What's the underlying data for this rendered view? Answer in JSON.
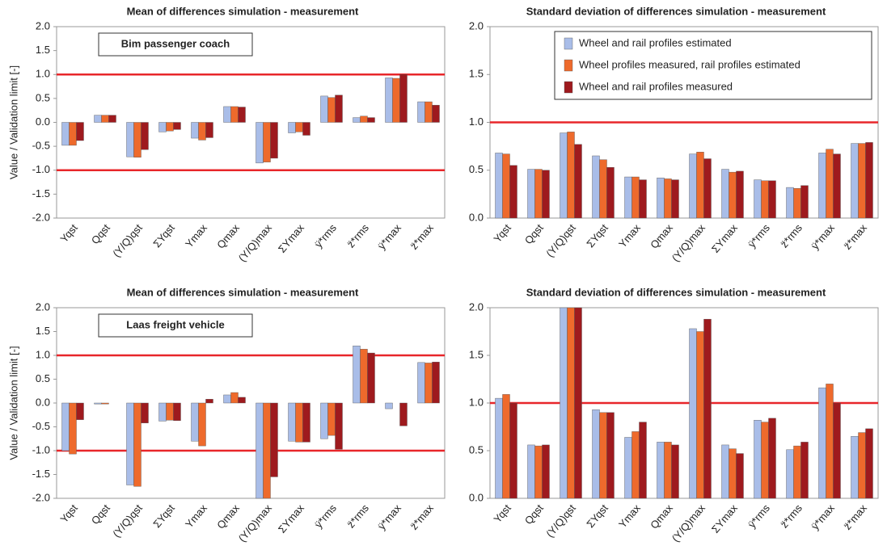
{
  "chart_data": [
    {
      "type": "bar",
      "title": "Mean of differences simulation - measurement",
      "ylabel": "Value / Validation limit [-]",
      "annotation": "Bim passenger coach",
      "categories": [
        "Yqst",
        "Qqst",
        "(Y/Q)qst",
        "ΣYqst",
        "Ymax",
        "Qmax",
        "(Y/Q)max",
        "ΣYmax",
        "ÿ*rms",
        "z̈*rms",
        "ÿ*max",
        "z̈*max"
      ],
      "series": [
        {
          "color": "#a9bde8",
          "values": [
            -0.48,
            0.15,
            -0.72,
            -0.2,
            -0.33,
            0.33,
            -0.85,
            -0.22,
            0.55,
            0.1,
            0.93,
            0.43
          ]
        },
        {
          "color": "#ee6a2c",
          "values": [
            -0.48,
            0.15,
            -0.73,
            -0.18,
            -0.37,
            0.33,
            -0.83,
            -0.2,
            0.52,
            0.13,
            0.92,
            0.43
          ]
        },
        {
          "color": "#9e1a1e",
          "values": [
            -0.38,
            0.15,
            -0.57,
            -0.15,
            -0.32,
            0.32,
            -0.75,
            -0.27,
            0.57,
            0.1,
            1.0,
            0.36
          ]
        }
      ],
      "ylim": [
        -2,
        2
      ],
      "yticks": [
        {
          "value": -2,
          "label": "-2.0"
        },
        -1.5,
        {
          "value": -1,
          "label": "-1.0"
        },
        -0.5,
        {
          "value": 0,
          "label": "0.0"
        },
        0.5,
        {
          "value": 1,
          "label": "1.0"
        },
        1.5,
        {
          "value": 2,
          "label": "2.0"
        }
      ],
      "hlines": [
        -1,
        1
      ],
      "hline_color": "#e8262a"
    },
    {
      "type": "bar",
      "title": "Standard deviation of differences simulation - measurement",
      "legend": "upper right",
      "categories": [
        "Yqst",
        "Qqst",
        "(Y/Q)qst",
        "ΣYqst",
        "Ymax",
        "Qmax",
        "(Y/Q)max",
        "ΣYmax",
        "ÿ*rms",
        "z̈*rms",
        "ÿ*max",
        "z̈*max"
      ],
      "series": [
        {
          "name": "Wheel and rail profiles estimated",
          "color": "#a9bde8",
          "values": [
            0.68,
            0.51,
            0.89,
            0.65,
            0.43,
            0.42,
            0.67,
            0.51,
            0.4,
            0.32,
            0.68,
            0.78
          ]
        },
        {
          "name": "Wheel profiles measured, rail profiles estimated",
          "color": "#ee6a2c",
          "values": [
            0.67,
            0.51,
            0.9,
            0.61,
            0.43,
            0.41,
            0.69,
            0.48,
            0.39,
            0.31,
            0.72,
            0.78
          ]
        },
        {
          "name": "Wheel and rail profiles measured",
          "color": "#9e1a1e",
          "values": [
            0.55,
            0.5,
            0.77,
            0.53,
            0.4,
            0.4,
            0.62,
            0.49,
            0.39,
            0.34,
            0.67,
            0.79
          ]
        }
      ],
      "ylim": [
        0,
        2
      ],
      "yticks": [
        {
          "value": 0,
          "label": "0.0"
        },
        0.5,
        {
          "value": 1,
          "label": "1.0"
        },
        1.5,
        {
          "value": 2,
          "label": "2.0"
        }
      ],
      "hlines": [
        1
      ],
      "hline_color": "#e8262a"
    },
    {
      "type": "bar",
      "title": "Mean of differences simulation - measurement",
      "ylabel": "Value / Validation limit [-]",
      "annotation": "Laas freight vehicle",
      "categories": [
        "Yqst",
        "Qqst",
        "(Y/Q)qst",
        "ΣYqst",
        "Ymax",
        "Qmax",
        "(Y/Q)max",
        "ΣYmax",
        "ÿ*rms",
        "z̈*rms",
        "ÿ*max",
        "z̈*max"
      ],
      "series": [
        {
          "color": "#a9bde8",
          "values": [
            -1.0,
            -0.02,
            -1.72,
            -0.38,
            -0.8,
            0.17,
            -2.0,
            -0.8,
            -0.75,
            1.2,
            -0.12,
            0.85
          ]
        },
        {
          "color": "#ee6a2c",
          "values": [
            -1.07,
            -0.02,
            -1.75,
            -0.36,
            -0.9,
            0.22,
            -2.0,
            -0.82,
            -0.68,
            1.13,
            0.0,
            0.84
          ]
        },
        {
          "color": "#9e1a1e",
          "values": [
            -0.35,
            0.0,
            -0.42,
            -0.37,
            0.08,
            0.12,
            -1.55,
            -0.82,
            -0.97,
            1.05,
            -0.48,
            0.86
          ]
        }
      ],
      "ylim": [
        -2,
        2
      ],
      "yticks": [
        {
          "value": -2,
          "label": "-2.0"
        },
        -1.5,
        {
          "value": -1,
          "label": "-1.0"
        },
        -0.5,
        {
          "value": 0,
          "label": "0.0"
        },
        0.5,
        {
          "value": 1,
          "label": "1.0"
        },
        1.5,
        {
          "value": 2,
          "label": "2.0"
        }
      ],
      "hlines": [
        -1,
        1
      ],
      "hline_color": "#e8262a"
    },
    {
      "type": "bar",
      "title": "Standard deviation of differences simulation - measurement",
      "categories": [
        "Yqst",
        "Qqst",
        "(Y/Q)qst",
        "ΣYqst",
        "Ymax",
        "Qmax",
        "(Y/Q)max",
        "ΣYmax",
        "ÿ*rms",
        "z̈*rms",
        "ÿ*max",
        "z̈*max"
      ],
      "series": [
        {
          "color": "#a9bde8",
          "values": [
            1.05,
            0.56,
            2.0,
            0.93,
            0.64,
            0.59,
            1.78,
            0.56,
            0.82,
            0.51,
            1.16,
            0.65
          ]
        },
        {
          "color": "#ee6a2c",
          "values": [
            1.09,
            0.55,
            2.0,
            0.9,
            0.7,
            0.59,
            1.75,
            0.52,
            0.8,
            0.55,
            1.2,
            0.69
          ]
        },
        {
          "color": "#9e1a1e",
          "values": [
            1.0,
            0.56,
            2.0,
            0.9,
            0.8,
            0.56,
            1.88,
            0.47,
            0.84,
            0.59,
            1.0,
            0.73
          ]
        }
      ],
      "ylim": [
        0,
        2
      ],
      "yticks": [
        {
          "value": 0,
          "label": "0.0"
        },
        0.5,
        {
          "value": 1,
          "label": "1.0"
        },
        1.5,
        {
          "value": 2,
          "label": "2.0"
        }
      ],
      "hlines": [
        1
      ],
      "hline_color": "#e8262a"
    }
  ]
}
